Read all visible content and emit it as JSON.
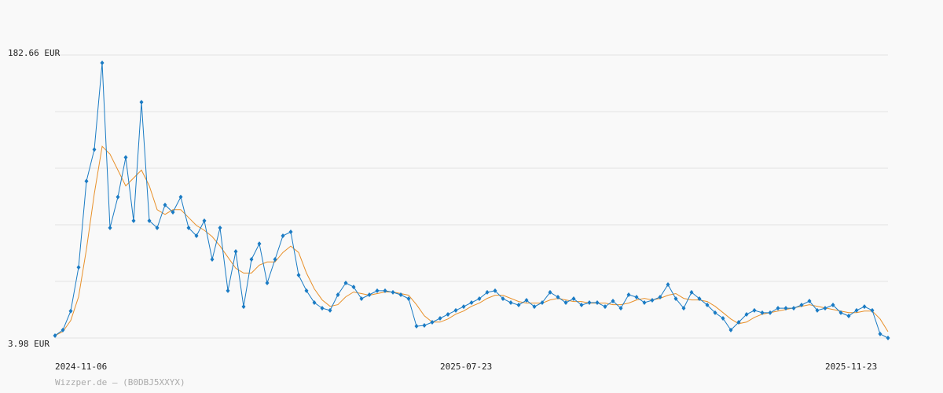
{
  "chart_data": {
    "type": "line",
    "categories": [
      "2024-11-06",
      null,
      null,
      null,
      null,
      null,
      null,
      null,
      null,
      null,
      null,
      null,
      null,
      null,
      null,
      null,
      null,
      null,
      null,
      null,
      null,
      null,
      null,
      null,
      null,
      null,
      null,
      null,
      null,
      null,
      null,
      null,
      null,
      null,
      null,
      null,
      null,
      null,
      null,
      null,
      null,
      null,
      null,
      null,
      null,
      null,
      null,
      null,
      null,
      "2025-07-23",
      null,
      null,
      null,
      null,
      null,
      null,
      null,
      null,
      null,
      null,
      null,
      null,
      null,
      null,
      null,
      null,
      null,
      null,
      null,
      null,
      null,
      null,
      null,
      null,
      null,
      null,
      null,
      null,
      null,
      null,
      null,
      null,
      null,
      null,
      null,
      null,
      null,
      null,
      null,
      null,
      null,
      null,
      null,
      null,
      null,
      null,
      null,
      null,
      "2025-11-23",
      null,
      null,
      null,
      null,
      null,
      null,
      null,
      null
    ],
    "series": [
      {
        "color": "#1a7bc4",
        "markers": true,
        "values": [
          5.5,
          9,
          21,
          48.6,
          103,
          123,
          177.7,
          73.5,
          93,
          118,
          78,
          152.9,
          78,
          73.5,
          88,
          83.4,
          93,
          73.5,
          68.5,
          78,
          53.6,
          73.5,
          33.8,
          58.6,
          23.8,
          53.6,
          63.5,
          38.7,
          53.6,
          68.5,
          71,
          43.7,
          33.8,
          26.3,
          22.8,
          21.4,
          31.3,
          38.7,
          36.2,
          28.8,
          31.3,
          33.8,
          33.8,
          32.8,
          31.3,
          28.8,
          11.4,
          11.9,
          13.9,
          16.4,
          18.9,
          21.4,
          23.8,
          26.3,
          28.8,
          32.8,
          33.8,
          28.8,
          26.3,
          24.8,
          27.8,
          23.8,
          26.3,
          32.8,
          29.8,
          26.3,
          28.8,
          24.8,
          26.3,
          26.3,
          23.8,
          27.3,
          22.8,
          31.3,
          29.8,
          26.3,
          27.8,
          29.8,
          37.7,
          28.8,
          22.8,
          32.8,
          28.8,
          24.8,
          19.9,
          16.4,
          9,
          13.9,
          18.9,
          21.4,
          19.9,
          19.9,
          22.8,
          22.8,
          22.8,
          24.8,
          27.3,
          21.4,
          22.8,
          24.8,
          19.9,
          17.9,
          21.4,
          23.8,
          21.4,
          6.5,
          4
        ]
      },
      {
        "color": "#e8902a",
        "markers": false,
        "values": [
          5.5,
          8,
          15,
          30,
          60,
          95,
          125,
          120,
          110,
          100,
          105,
          110,
          100,
          85,
          82,
          85,
          85,
          80,
          75,
          72,
          68,
          62,
          55,
          48,
          45,
          45,
          50,
          52,
          52,
          58,
          62,
          58,
          45,
          35,
          28,
          24,
          25,
          30,
          33,
          32,
          31,
          32,
          33,
          33,
          32,
          31,
          25,
          18,
          14,
          14,
          16,
          19,
          21,
          24,
          26,
          29,
          31,
          31,
          29,
          27,
          26,
          26,
          26,
          28,
          29,
          28,
          27,
          27,
          26,
          26,
          26,
          25,
          25,
          26,
          28,
          29,
          28,
          29,
          31,
          32,
          29,
          28,
          28,
          27,
          24,
          20,
          16,
          13,
          14,
          17,
          19,
          20,
          21,
          22,
          23,
          24,
          25,
          24,
          23,
          22,
          21,
          20,
          20,
          21,
          21,
          16,
          8
        ]
      }
    ],
    "ylim": [
      3.98,
      182.66
    ],
    "yticks": [
      {
        "value": 3.98,
        "label": "3.98 EUR"
      },
      {
        "value": 182.66,
        "label": "182.66 EUR"
      }
    ],
    "ygrid": [
      3.98,
      39.72,
      75.45,
      111.19,
      146.92,
      182.66
    ],
    "grid": true,
    "source": "Wizzper.de – (B0DBJ5XXYX)"
  }
}
